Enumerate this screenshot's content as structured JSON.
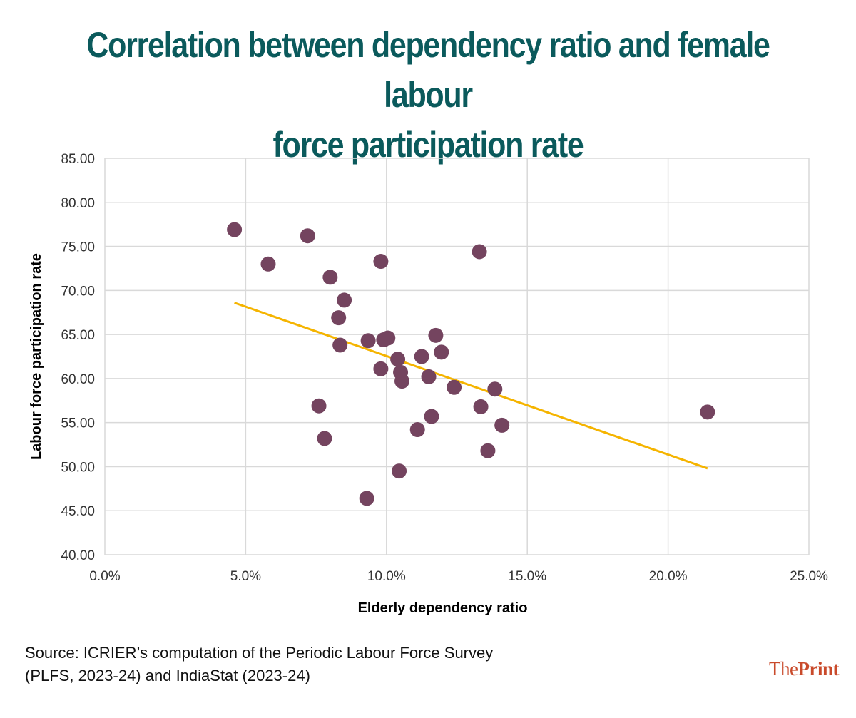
{
  "chart_data": {
    "type": "scatter",
    "title_lines": [
      "Correlation between dependency ratio and female labour",
      "force participation rate"
    ],
    "xlabel": "Elderly dependency ratio",
    "ylabel": "Labour force participation rate",
    "xlim": [
      0,
      25
    ],
    "ylim": [
      40,
      85
    ],
    "x_ticks": [
      0,
      5,
      10,
      15,
      20,
      25
    ],
    "x_tick_labels": [
      "0.0%",
      "5.0%",
      "10.0%",
      "15.0%",
      "20.0%",
      "25.0%"
    ],
    "y_ticks": [
      40,
      45,
      50,
      55,
      60,
      65,
      70,
      75,
      80,
      85
    ],
    "y_tick_labels": [
      "40.00",
      "45.00",
      "50.00",
      "55.00",
      "60.00",
      "65.00",
      "70.00",
      "75.00",
      "80.00",
      "85.00"
    ],
    "grid": true,
    "points": [
      {
        "x": 4.6,
        "y": 76.9
      },
      {
        "x": 5.8,
        "y": 73.0
      },
      {
        "x": 7.2,
        "y": 76.2
      },
      {
        "x": 7.6,
        "y": 56.9
      },
      {
        "x": 7.8,
        "y": 53.2
      },
      {
        "x": 8.0,
        "y": 71.5
      },
      {
        "x": 8.3,
        "y": 66.9
      },
      {
        "x": 8.35,
        "y": 63.8
      },
      {
        "x": 8.5,
        "y": 68.9
      },
      {
        "x": 9.3,
        "y": 46.4
      },
      {
        "x": 9.35,
        "y": 64.3
      },
      {
        "x": 9.8,
        "y": 61.1
      },
      {
        "x": 9.8,
        "y": 73.3
      },
      {
        "x": 9.9,
        "y": 64.4
      },
      {
        "x": 10.05,
        "y": 64.6
      },
      {
        "x": 10.4,
        "y": 62.2
      },
      {
        "x": 10.45,
        "y": 49.5
      },
      {
        "x": 10.5,
        "y": 60.7
      },
      {
        "x": 10.55,
        "y": 59.7
      },
      {
        "x": 11.1,
        "y": 54.2
      },
      {
        "x": 11.25,
        "y": 62.5
      },
      {
        "x": 11.5,
        "y": 60.2
      },
      {
        "x": 11.6,
        "y": 55.7
      },
      {
        "x": 11.75,
        "y": 64.9
      },
      {
        "x": 11.95,
        "y": 63.0
      },
      {
        "x": 12.4,
        "y": 59.0
      },
      {
        "x": 13.3,
        "y": 74.4
      },
      {
        "x": 13.35,
        "y": 56.8
      },
      {
        "x": 13.6,
        "y": 51.8
      },
      {
        "x": 13.85,
        "y": 58.8
      },
      {
        "x": 14.1,
        "y": 54.7
      },
      {
        "x": 21.4,
        "y": 56.2
      }
    ],
    "trendline": {
      "x1": 4.6,
      "y1": 68.6,
      "x2": 21.4,
      "y2": 49.8
    },
    "colors": {
      "point": "#74445f",
      "trendline": "#f5b400",
      "grid": "#d9d9d9",
      "title": "#0b5a5c"
    }
  },
  "source_lines": [
    "Source: ICRIER’s computation of the Periodic Labour Force Survey",
    "(PLFS, 2023-24) and IndiaStat (2023-24)"
  ],
  "logo": {
    "part1": "The",
    "part2": "Print"
  }
}
